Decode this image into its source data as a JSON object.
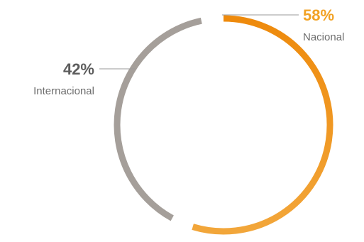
{
  "chart_data": {
    "type": "pie",
    "style": "ring",
    "series": [
      {
        "category": "Nacional",
        "value": 58,
        "value_label": "58%",
        "color": "#ee8a0c",
        "label_color": "#f2a224"
      },
      {
        "category": "Internacional",
        "value": 42,
        "value_label": "42%",
        "color": "#a59f9a",
        "label_color": "#5d5d5d"
      }
    ]
  }
}
